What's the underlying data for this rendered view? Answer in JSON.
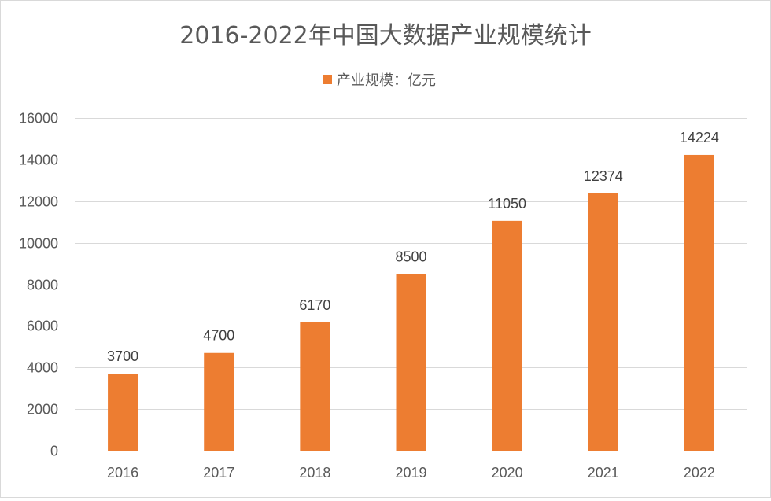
{
  "colors": {
    "bar": "#ED7D31",
    "grid": "#D9D9D9",
    "text": "#595959"
  },
  "chart_data": {
    "type": "bar",
    "title": "2016-2022年中国大数据产业规模统计",
    "legend_position": "top",
    "grid": true,
    "categories": [
      "2016",
      "2017",
      "2018",
      "2019",
      "2020",
      "2021",
      "2022"
    ],
    "series": [
      {
        "name": "产业规模：亿元",
        "values": [
          3700,
          4700,
          6170,
          8500,
          11050,
          12374,
          14224
        ]
      }
    ],
    "ylim": [
      0,
      16000
    ],
    "yticks": [
      "0",
      "2000",
      "4000",
      "6000",
      "8000",
      "10000",
      "12000",
      "14000",
      "16000"
    ],
    "data_labels": [
      "3700",
      "4700",
      "6170",
      "8500",
      "11050",
      "12374",
      "14224"
    ],
    "xlabel": "",
    "ylabel": ""
  }
}
